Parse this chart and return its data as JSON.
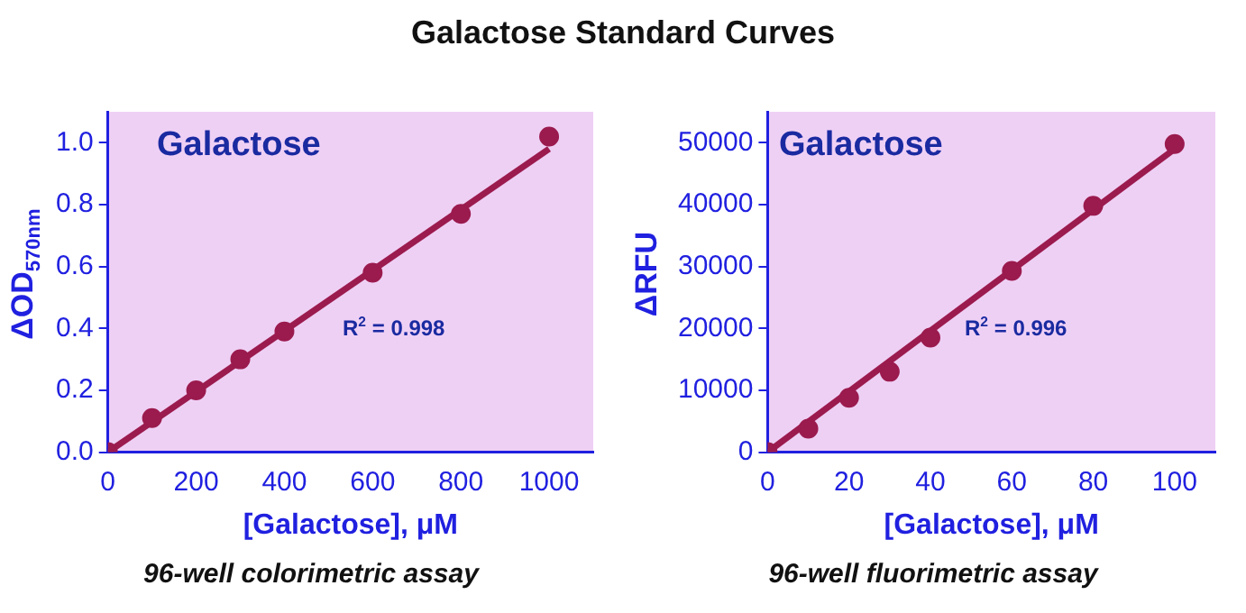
{
  "chart_data": [
    {
      "type": "scatter",
      "title": "Galactose Standard Curves",
      "xlabel": "[Galactose], μM",
      "ylabel": "ΔOD$_{570nm}$",
      "annotations": [
        "Galactose",
        "R$^{2}$ = 0.998",
        "96-well colorimetric assay"
      ],
      "series": [
        {
          "color": "#9b1b4e",
          "marker": "circle",
          "x": [
            0,
            100,
            200,
            300,
            400,
            600,
            800,
            1000
          ],
          "values": [
            0,
            0.11,
            0.2,
            0.3,
            0.39,
            0.58,
            0.77,
            1.02
          ]
        },
        {
          "type": "line",
          "color": "#9b1b4e",
          "marker": "none",
          "x": [
            0,
            1000
          ],
          "values": [
            0,
            0.98
          ]
        }
      ],
      "grid": false,
      "legend": false,
      "xlim": [
        0,
        1100
      ],
      "xticks": [
        0,
        200,
        400,
        600,
        800,
        1000
      ],
      "ylim": [
        0,
        1.1
      ],
      "yticks": [
        {
          "value": 0,
          "label": "0.0"
        },
        0.2,
        0.4,
        0.6,
        0.8,
        {
          "value": 1,
          "label": "1.0"
        }
      ]
    },
    {
      "type": "scatter",
      "xlabel": "[Galactose], μM",
      "ylabel": "ΔRFU",
      "annotations": [
        "Galactose",
        "R$^{2}$ = 0.996",
        "96-well fluorimetric assay"
      ],
      "series": [
        {
          "color": "#9b1b4e",
          "marker": "circle",
          "x": [
            0,
            10,
            20,
            30,
            40,
            60,
            80,
            100
          ],
          "values": [
            0,
            3800,
            8800,
            13000,
            18500,
            29300,
            39800,
            49800
          ]
        },
        {
          "type": "line",
          "color": "#9b1b4e",
          "marker": "none",
          "x": [
            0,
            100
          ],
          "values": [
            0,
            49000
          ]
        }
      ],
      "grid": false,
      "legend": false,
      "xlim": [
        0,
        110
      ],
      "xticks": [
        0,
        20,
        40,
        60,
        80,
        100
      ],
      "ylim": [
        0,
        55000
      ],
      "yticks": [
        0,
        10000,
        20000,
        30000,
        40000,
        50000
      ]
    }
  ]
}
